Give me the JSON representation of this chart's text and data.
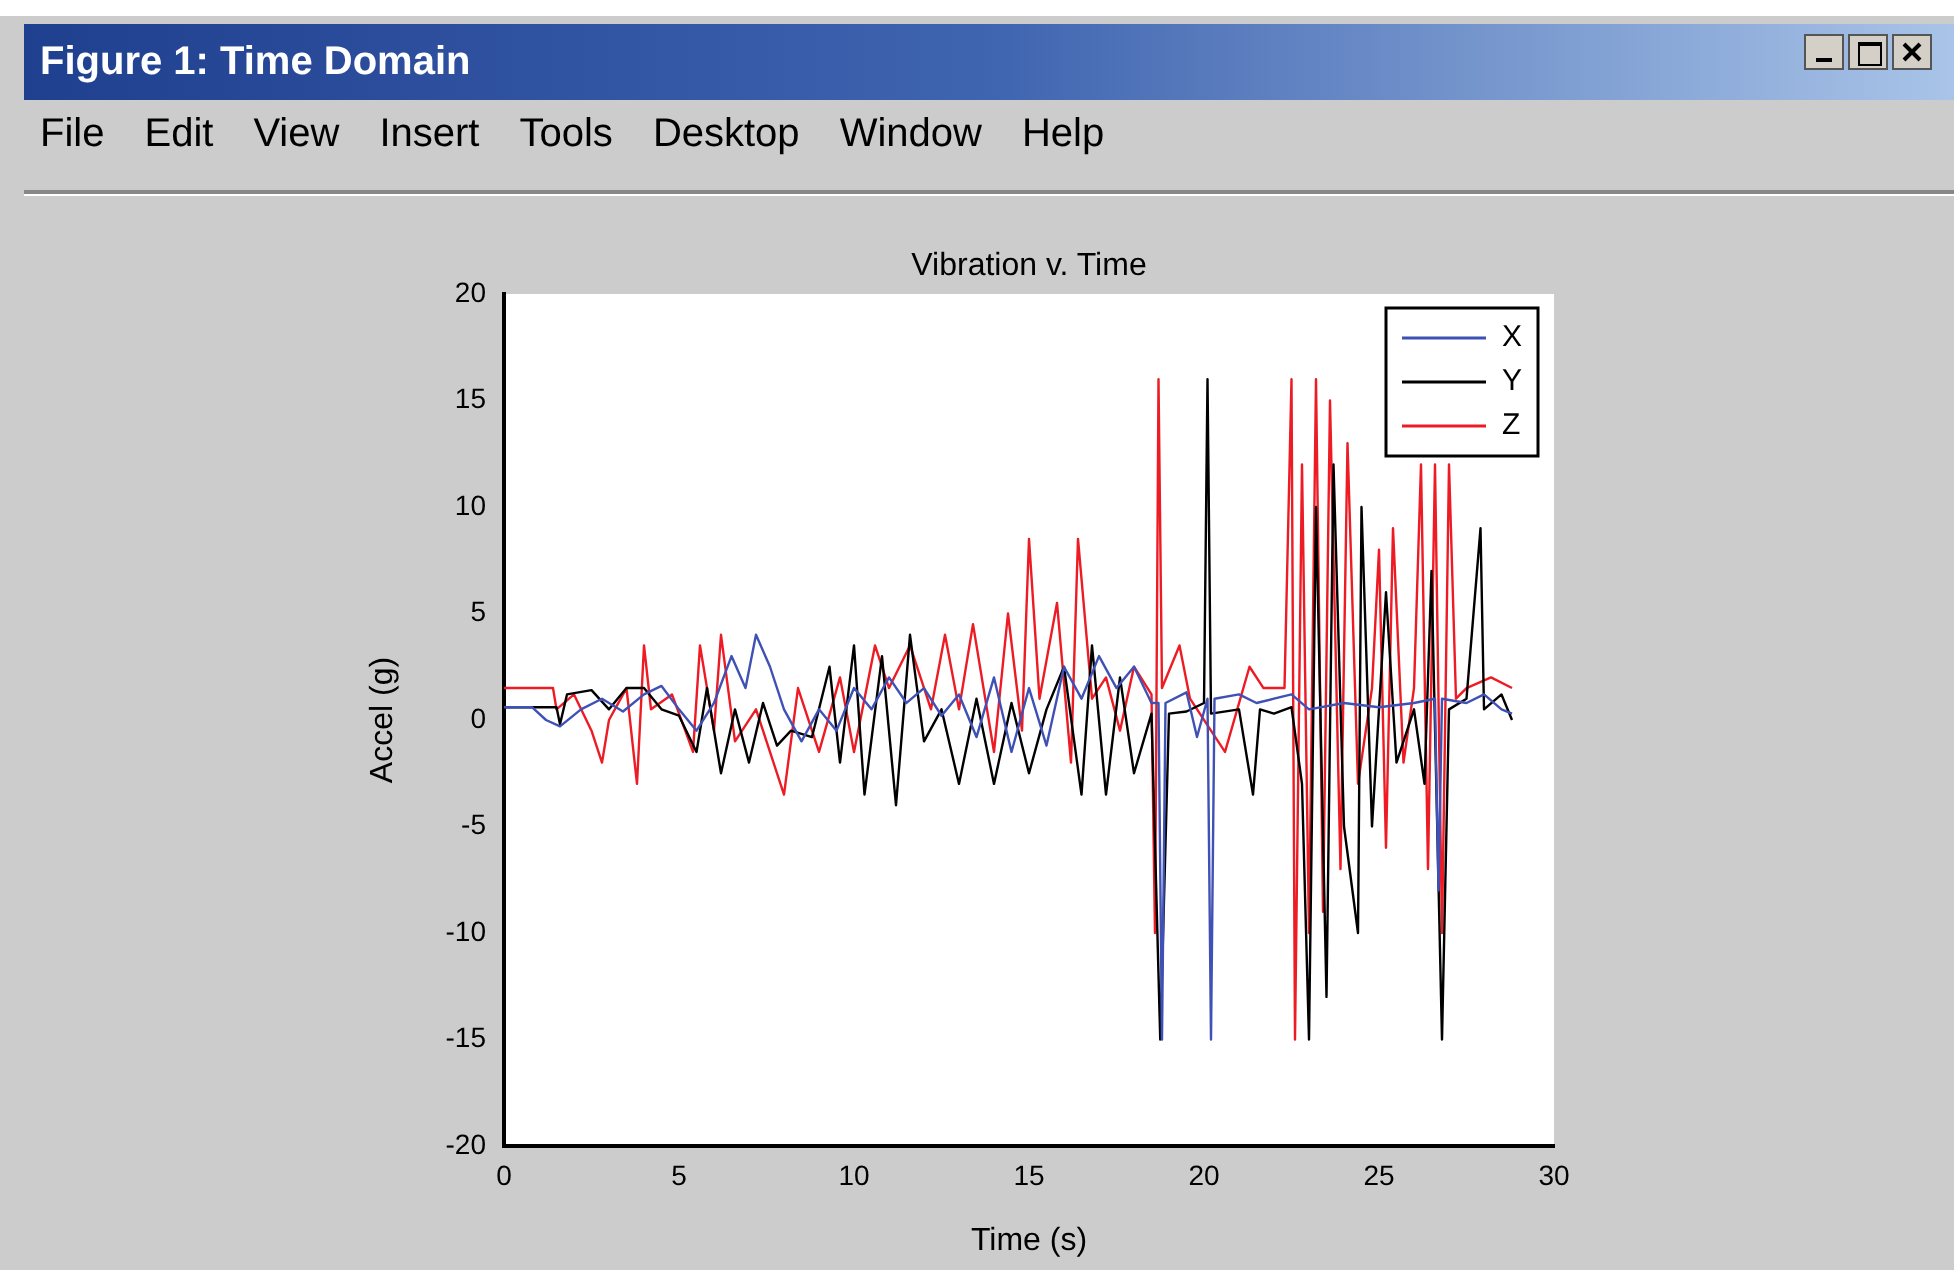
{
  "chart_data": {
    "type": "line",
    "title": "Vibration v. Time",
    "xlabel": "Time (s)",
    "ylabel": "Accel (g)",
    "annotations": [
      "Figure 1: Time Domain",
      "File",
      "Edit",
      "View",
      "Insert",
      "Tools",
      "Desktop",
      "Window",
      "Help"
    ],
    "xlim": [
      0,
      30
    ],
    "xticks": [
      0,
      5,
      10,
      15,
      20,
      25,
      30
    ],
    "ylim": [
      -20,
      20
    ],
    "yticks": [
      -20,
      -15,
      -10,
      -5,
      0,
      5,
      10,
      15,
      20
    ],
    "grid": false,
    "legend": "top right",
    "marker": "none",
    "line_style": "solid",
    "series": [
      {
        "name": "X",
        "color": "#3f51b5",
        "x": [
          0,
          0.8,
          1.2,
          1.6,
          2.2,
          2.8,
          3.4,
          4,
          4.5,
          5,
          5.5,
          6,
          6.5,
          6.9,
          7.2,
          7.6,
          8,
          8.5,
          9,
          9.5,
          10,
          10.5,
          11,
          11.5,
          12,
          12.5,
          13,
          13.5,
          14,
          14.5,
          15,
          15.5,
          16,
          16.5,
          17,
          17.5,
          18,
          18.5,
          18.7,
          18.8,
          18.9,
          19.5,
          19.8,
          20.1,
          20.2,
          20.3,
          21,
          21.5,
          22,
          22.5,
          23,
          24,
          25,
          26,
          26.6,
          26.7,
          26.8,
          27.5,
          28,
          28.5,
          28.8
        ],
        "values": [
          0.6,
          0.6,
          0,
          -0.3,
          0.5,
          1,
          0.4,
          1.2,
          1.6,
          0.5,
          -0.5,
          0.8,
          3,
          1.5,
          4,
          2.5,
          0.5,
          -1,
          0.5,
          -0.5,
          1.5,
          0.5,
          2,
          0.8,
          1.5,
          0.2,
          1.2,
          -0.8,
          2,
          -1.5,
          1.5,
          -1.2,
          2.5,
          1,
          3,
          1.5,
          2.5,
          0.8,
          0.8,
          -15,
          0.8,
          1.3,
          -0.8,
          1,
          -15,
          1,
          1.2,
          0.8,
          1,
          1.2,
          0.5,
          0.8,
          0.6,
          0.8,
          1,
          -8,
          1,
          0.8,
          1.2,
          0.5,
          0.3
        ]
      },
      {
        "name": "Y",
        "color": "#000000",
        "x": [
          0,
          1.5,
          1.6,
          1.8,
          2.5,
          3,
          3.5,
          4,
          4.5,
          5,
          5.5,
          5.8,
          6.2,
          6.6,
          7,
          7.4,
          7.8,
          8.2,
          8.8,
          9.3,
          9.6,
          10,
          10.3,
          10.8,
          11.2,
          11.6,
          12,
          12.5,
          13,
          13.5,
          14,
          14.5,
          15,
          15.5,
          16,
          16.5,
          16.8,
          17.2,
          17.6,
          18,
          18.5,
          18.75,
          19,
          19.5,
          20,
          20.1,
          20.2,
          21,
          21.4,
          21.6,
          22,
          22.5,
          22.8,
          23,
          23.2,
          23.5,
          23.7,
          24,
          24.4,
          24.5,
          24.8,
          25.2,
          25.5,
          26,
          26.3,
          26.5,
          26.8,
          27,
          27.5,
          27.9,
          28,
          28.5,
          28.8
        ],
        "values": [
          0.6,
          0.6,
          -0.2,
          1.2,
          1.4,
          0.5,
          1.5,
          1.5,
          0.5,
          0.2,
          -1.5,
          1.5,
          -2.5,
          0.5,
          -2,
          0.8,
          -1.2,
          -0.5,
          -0.8,
          2.5,
          -2,
          3.5,
          -3.5,
          3,
          -4,
          4,
          -1,
          0.5,
          -3,
          1,
          -3,
          0.8,
          -2.5,
          0.5,
          2.5,
          -3.5,
          3.5,
          -3.5,
          2,
          -2.5,
          0.3,
          -15,
          0.3,
          0.4,
          0.8,
          16,
          0.3,
          0.5,
          -3.5,
          0.5,
          0.3,
          0.6,
          -3,
          -15,
          10,
          -13,
          12,
          -5,
          -10,
          10,
          -5,
          6,
          -2,
          0.5,
          -3,
          7,
          -15,
          0.5,
          1,
          9,
          0.5,
          1.2,
          0
        ]
      },
      {
        "name": "Z",
        "color": "#ed1c24",
        "x": [
          0,
          1.4,
          1.5,
          2,
          2.5,
          2.8,
          3,
          3.5,
          3.8,
          4,
          4.2,
          4.8,
          5.4,
          5.6,
          6,
          6.2,
          6.6,
          7.2,
          8,
          8.4,
          9,
          9.6,
          10,
          10.6,
          11,
          11.6,
          12.2,
          12.6,
          13,
          13.4,
          14,
          14.4,
          14.8,
          15,
          15.3,
          15.8,
          16.2,
          16.4,
          16.8,
          17.2,
          17.6,
          18,
          18.5,
          18.6,
          18.7,
          18.8,
          19.3,
          19.6,
          20.2,
          20.6,
          21.3,
          21.7,
          22.3,
          22.5,
          22.6,
          22.8,
          23,
          23.2,
          23.4,
          23.6,
          23.9,
          24.1,
          24.4,
          24.8,
          25,
          25.2,
          25.4,
          25.7,
          26,
          26.2,
          26.4,
          26.6,
          26.8,
          27,
          27.2,
          27.5,
          28.2,
          28.8
        ],
        "values": [
          1.5,
          1.5,
          0.5,
          1.2,
          -0.5,
          -2,
          0,
          1.5,
          -3,
          3.5,
          0.5,
          1.2,
          -1.5,
          3.5,
          -0.5,
          4,
          -1,
          0.5,
          -3.5,
          1.5,
          -1.5,
          2,
          -1.5,
          3.5,
          1.5,
          3.5,
          0.5,
          4,
          0.5,
          4.5,
          -1.5,
          5,
          -0.5,
          8.5,
          1,
          5.5,
          -2,
          8.5,
          1,
          2,
          -0.5,
          2.5,
          1.2,
          -10,
          16,
          1.5,
          3.5,
          1,
          -0.5,
          -1.5,
          2.5,
          1.5,
          1.5,
          16,
          -15,
          12,
          -10,
          16,
          -9,
          15,
          -7,
          13,
          -3,
          1.5,
          8,
          -6,
          9,
          -2,
          1.5,
          12,
          -7,
          12,
          -10,
          12,
          1,
          1.5,
          2,
          1.5
        ]
      }
    ]
  }
}
